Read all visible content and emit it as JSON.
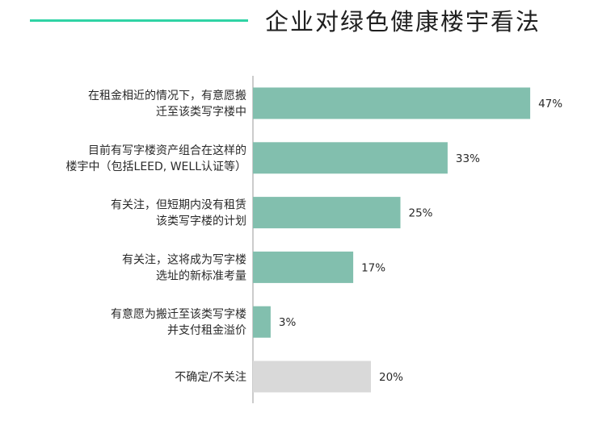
{
  "header": {
    "title": "企业对绿色健康楼宇看法",
    "accent_color": "#2fd3a5"
  },
  "chart_data": {
    "type": "bar",
    "orientation": "horizontal",
    "title": "企业对绿色健康楼宇看法",
    "categories": [
      [
        "在租金相近的情况下，有意愿搬",
        "迁至该类写字楼中"
      ],
      [
        "目前有写字楼资产组合在这样的",
        "楼宇中（包括LEED, WELL认证等）"
      ],
      [
        "有关注，但短期内没有租赁",
        "该类写字楼的计划"
      ],
      [
        "有关注，这将成为写字楼",
        "选址的新标准考量"
      ],
      [
        "有意愿为搬迁至该类写字楼",
        "并支付租金溢价"
      ],
      [
        "不确定/不关注"
      ]
    ],
    "values": [
      47,
      33,
      25,
      17,
      3,
      20
    ],
    "value_labels": [
      "47%",
      "33%",
      "25%",
      "17%",
      "3%",
      "20%"
    ],
    "unit": "%",
    "xlim": [
      0,
      50
    ],
    "grid": false,
    "legend": "none",
    "colors": [
      "#82bfae",
      "#82bfae",
      "#82bfae",
      "#82bfae",
      "#82bfae",
      "#d9d9d9"
    ]
  }
}
